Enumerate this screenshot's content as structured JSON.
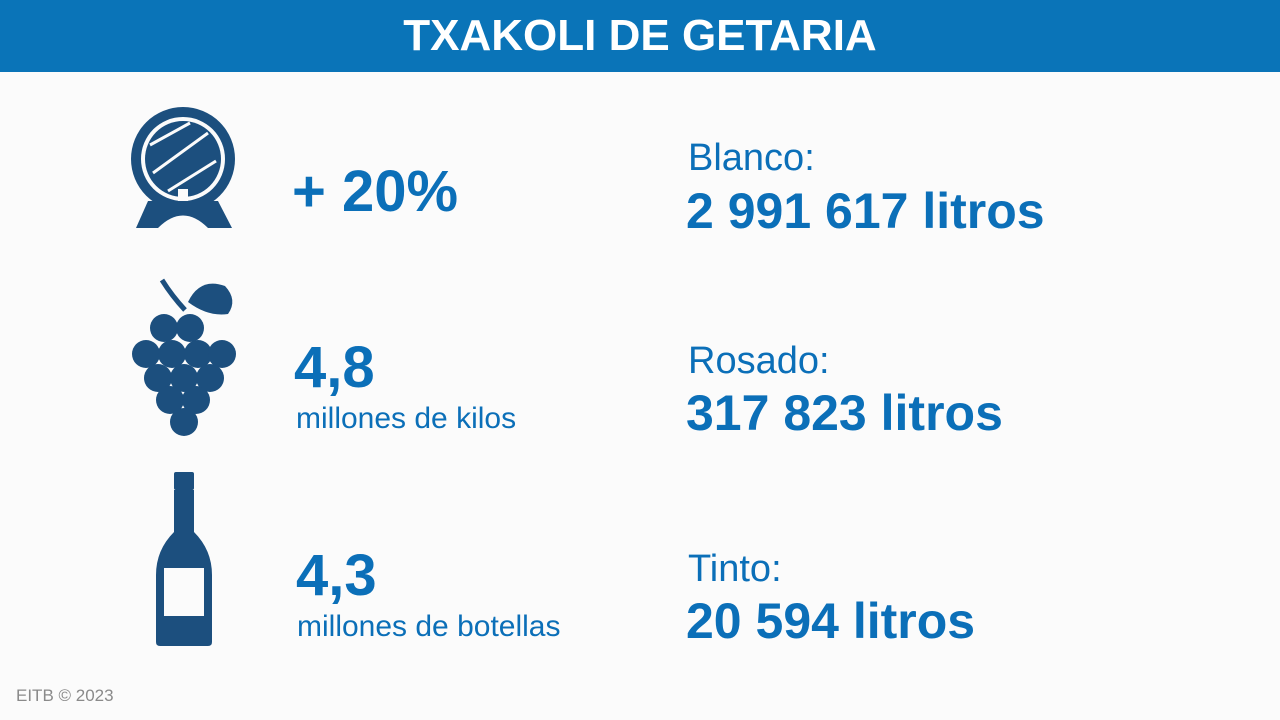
{
  "header": {
    "title": "TXAKOLI DE GETARIA"
  },
  "stats": [
    {
      "value": "+ 20%"
    },
    {
      "value": "4,8",
      "label": "millones de kilos"
    },
    {
      "value": "4,3",
      "label": "millones de botellas"
    }
  ],
  "production": [
    {
      "label": "Blanco:",
      "value": "2 991 617 litros"
    },
    {
      "label": "Rosado:",
      "value": "317 823 litros"
    },
    {
      "label": "Tinto:",
      "value": "20 594 litros"
    }
  ],
  "footer": {
    "credit": "EITB © 2023"
  }
}
